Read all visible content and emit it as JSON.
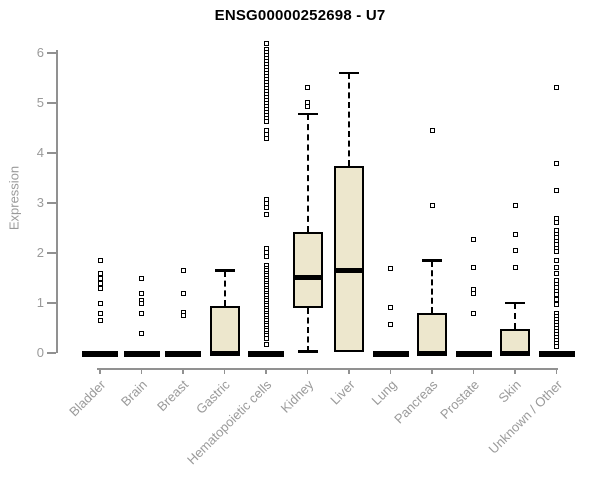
{
  "title": "ENSG00000252698 - U7",
  "colors": {
    "box_fill": "#EDE7CD",
    "axis_line": "#919191",
    "axis_text": "#9A9A9A",
    "box_stroke": "#000000",
    "title_text": "#000000",
    "background": "#FFFFFF"
  },
  "chart_data": {
    "type": "boxplot",
    "title": "ENSG00000252698 - U7",
    "xlabel": "",
    "ylabel": "Expression",
    "ylim": [
      0,
      6
    ],
    "yticks": [
      0,
      1,
      2,
      3,
      4,
      5,
      6
    ],
    "grid": false,
    "legend": "none",
    "categories": [
      {
        "label": "Bladder",
        "q1": 0,
        "median": 0,
        "q3": 0,
        "whisker_low": null,
        "whisker_high": null,
        "outliers": [
          1.85,
          1.6,
          1.5,
          1.4,
          1.3,
          1.0,
          0.8,
          0.65
        ]
      },
      {
        "label": "Brain",
        "q1": 0,
        "median": 0,
        "q3": 0,
        "whisker_low": null,
        "whisker_high": null,
        "outliers": [
          1.5,
          1.2,
          1.06,
          1.0,
          0.8,
          0.4
        ]
      },
      {
        "label": "Breast",
        "q1": 0,
        "median": 0,
        "q3": 0,
        "whisker_low": null,
        "whisker_high": null,
        "outliers": [
          1.65,
          1.2,
          0.82,
          0.75
        ]
      },
      {
        "label": "Gastric",
        "q1": 0,
        "median": 0,
        "q3": 0.95,
        "whisker_low": null,
        "whisker_high": 1.65,
        "outliers": []
      },
      {
        "label": "Hematopoietic cells",
        "q1": 0,
        "median": 0,
        "q3": 0,
        "whisker_low": null,
        "whisker_high": null,
        "outliers": [
          6.2,
          6.08,
          6.02,
          5.96,
          5.9,
          5.84,
          5.78,
          5.72,
          5.66,
          5.6,
          5.54,
          5.48,
          5.42,
          5.36,
          5.3,
          5.24,
          5.18,
          5.12,
          5.06,
          5.0,
          4.94,
          4.88,
          4.82,
          4.76,
          4.7,
          4.64,
          4.45,
          4.38,
          4.3,
          3.08,
          3.0,
          2.92,
          2.78,
          2.1,
          2.02,
          1.94,
          1.75,
          1.7,
          1.65,
          1.6,
          1.55,
          1.5,
          1.45,
          1.4,
          1.35,
          1.3,
          1.25,
          1.2,
          1.15,
          1.1,
          1.05,
          1.0,
          0.95,
          0.9,
          0.85,
          0.8,
          0.75,
          0.7,
          0.65,
          0.6,
          0.55,
          0.5,
          0.45,
          0.4,
          0.35,
          0.3,
          0.18
        ]
      },
      {
        "label": "Kidney",
        "q1": 0.9,
        "median": 1.52,
        "q3": 2.42,
        "whisker_low": 0.03,
        "whisker_high": 4.78,
        "outliers": [
          5.32,
          5.02,
          4.94
        ]
      },
      {
        "label": "Liver",
        "q1": 0.02,
        "median": 1.65,
        "q3": 3.75,
        "whisker_low": null,
        "whisker_high": 5.6,
        "outliers": []
      },
      {
        "label": "Lung",
        "q1": 0,
        "median": 0,
        "q3": 0,
        "whisker_low": null,
        "whisker_high": null,
        "outliers": [
          1.7,
          0.92,
          0.58
        ]
      },
      {
        "label": "Pancreas",
        "q1": 0,
        "median": 0,
        "q3": 0.8,
        "whisker_low": null,
        "whisker_high": 1.85,
        "outliers": [
          4.46,
          2.95
        ]
      },
      {
        "label": "Prostate",
        "q1": 0,
        "median": 0,
        "q3": 0,
        "whisker_low": null,
        "whisker_high": null,
        "outliers": [
          2.28,
          1.72,
          1.28,
          1.2,
          0.8
        ]
      },
      {
        "label": "Skin",
        "q1": 0,
        "median": 0,
        "q3": 0.48,
        "whisker_low": null,
        "whisker_high": 1.0,
        "outliers": [
          2.95,
          2.38,
          2.06,
          1.72
        ]
      },
      {
        "label": "Unknown / Other",
        "q1": 0,
        "median": 0,
        "q3": 0,
        "whisker_low": null,
        "whisker_high": null,
        "outliers": [
          5.32,
          3.8,
          3.25,
          2.7,
          2.62,
          2.45,
          2.38,
          2.31,
          2.24,
          2.17,
          2.1,
          2.03,
          1.85,
          1.72,
          1.6,
          1.45,
          1.38,
          1.31,
          1.24,
          1.18,
          1.08,
          0.98,
          0.8,
          0.74,
          0.68,
          0.62,
          0.56,
          0.5,
          0.44,
          0.38,
          0.32,
          0.26,
          0.2,
          0.14
        ]
      }
    ]
  }
}
